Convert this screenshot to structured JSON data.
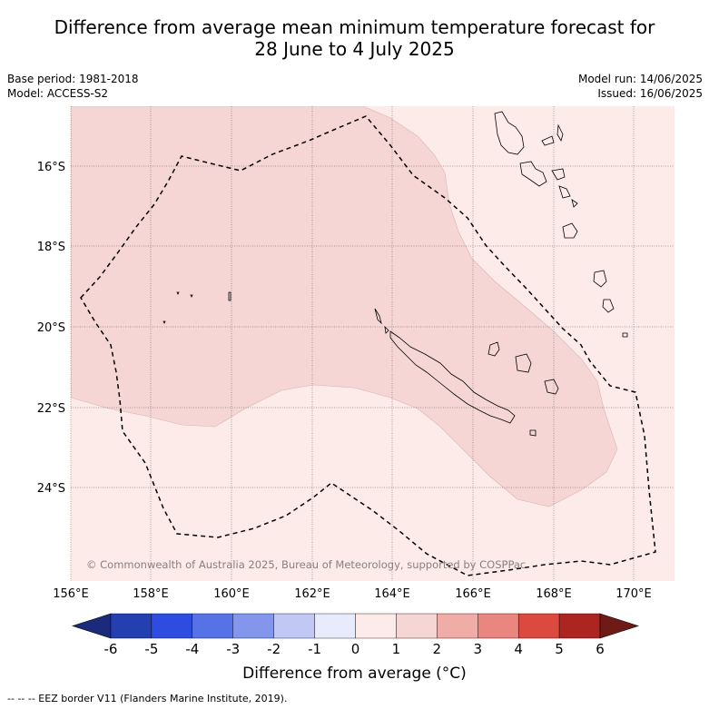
{
  "title": {
    "line1": "Difference from average mean minimum temperature forecast for",
    "line2": "28 June to 4 July 2025"
  },
  "meta": {
    "base_period": "Base period: 1981-2018",
    "model": "Model: ACCESS-S2",
    "model_run": "Model run: 14/06/2025",
    "issued": "Issued: 16/06/2025"
  },
  "map": {
    "lat_labels": [
      "16°S",
      "18°S",
      "20°S",
      "22°S",
      "24°S"
    ],
    "lon_labels": [
      "156°E",
      "158°E",
      "160°E",
      "162°E",
      "164°E",
      "166°E",
      "168°E",
      "170°E"
    ],
    "copyright": "© Commonwealth of Australia 2025, Bureau of Meteorology, supported by COSPPac",
    "fill_colors": {
      "anomaly_0_to_1": "#fcebe9",
      "anomaly_1_to_2": "#f5d6d4"
    }
  },
  "colorbar": {
    "tick_labels": [
      "-6",
      "-5",
      "-4",
      "-3",
      "-2",
      "-1",
      "0",
      "1",
      "2",
      "3",
      "4",
      "5",
      "6"
    ],
    "colors": [
      "#1b2a7a",
      "#233fb0",
      "#2e4de0",
      "#5672e6",
      "#8396ec",
      "#c1c8f4",
      "#e8ebfb",
      "#fcebe9",
      "#f5d6d4",
      "#f0ada8",
      "#e8867f",
      "#dc4a3f",
      "#ad2520",
      "#6e1a16"
    ],
    "label": "Difference from average (°C)"
  },
  "footnote": "--  --  -- EEZ border V11 (Flanders Marine Institute, 2019)."
}
